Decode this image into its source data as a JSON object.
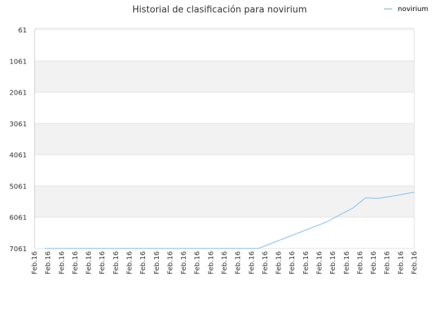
{
  "chart_data": {
    "type": "line",
    "title": "Historial de clasificación para novirium",
    "legend": {
      "position": "top-right",
      "label": "novirium"
    },
    "y_axis": {
      "inverted": true,
      "range": [
        61,
        7061
      ],
      "ticks": [
        "61",
        "1061",
        "2061",
        "3061",
        "4061",
        "5061",
        "6061",
        "7061"
      ]
    },
    "x_axis": {
      "ticks": [
        "Feb.16",
        "Feb.16",
        "Feb.16",
        "Feb.16",
        "Feb.16",
        "Feb.16",
        "Feb.16",
        "Feb.16",
        "Feb.16",
        "Feb.16",
        "Feb.16",
        "Feb.16",
        "Feb.16",
        "Feb.16",
        "Feb.16",
        "Feb.16",
        "Feb.16",
        "Feb.16",
        "Feb.16",
        "Feb.16",
        "Feb.16",
        "Feb.16",
        "Feb.16",
        "Feb.16",
        "Feb.16",
        "Feb.16",
        "Feb.16",
        "Feb.16",
        "Feb.16"
      ]
    },
    "grid": "horizontal, alternating bands",
    "series": [
      {
        "name": "novirium",
        "color": "#8cc4ec",
        "x": [
          0.75,
          16.5,
          21.5,
          23.5,
          24.4,
          25.3,
          26.5,
          28.0
        ],
        "values": [
          7061,
          7061,
          6220,
          5760,
          5440,
          5460,
          5380,
          5261
        ]
      }
    ]
  }
}
